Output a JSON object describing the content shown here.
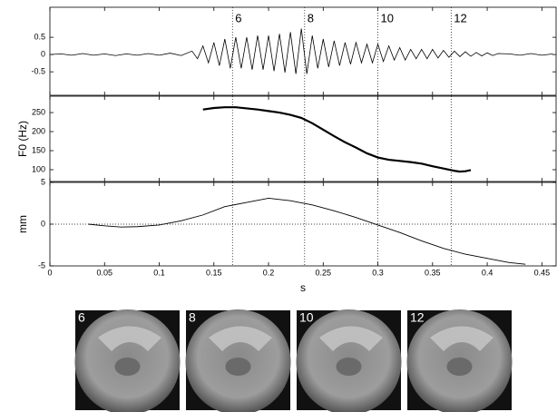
{
  "chart_data": [
    {
      "type": "line",
      "color": "#000000",
      "x": [
        0,
        0.01,
        0.02,
        0.03,
        0.04,
        0.05,
        0.06,
        0.07,
        0.08,
        0.09,
        0.1,
        0.11,
        0.12,
        0.13,
        0.135,
        0.14,
        0.145,
        0.15,
        0.155,
        0.16,
        0.165,
        0.17,
        0.175,
        0.18,
        0.185,
        0.19,
        0.195,
        0.2,
        0.205,
        0.21,
        0.215,
        0.22,
        0.225,
        0.23,
        0.235,
        0.24,
        0.245,
        0.25,
        0.255,
        0.26,
        0.265,
        0.27,
        0.275,
        0.28,
        0.285,
        0.29,
        0.295,
        0.3,
        0.305,
        0.31,
        0.315,
        0.32,
        0.325,
        0.33,
        0.335,
        0.34,
        0.345,
        0.35,
        0.355,
        0.36,
        0.365,
        0.37,
        0.375,
        0.38,
        0.385,
        0.39,
        0.395,
        0.4,
        0.405,
        0.41,
        0.42,
        0.43,
        0.44,
        0.45,
        0.46
      ],
      "values": [
        0,
        0.02,
        -0.02,
        0.03,
        -0.02,
        0.02,
        -0.03,
        0.02,
        -0.02,
        0.03,
        -0.02,
        0.04,
        -0.03,
        0.1,
        -0.12,
        0.25,
        -0.24,
        0.35,
        -0.32,
        0.45,
        -0.4,
        0.5,
        -0.4,
        0.5,
        -0.44,
        0.55,
        -0.44,
        0.55,
        -0.48,
        0.6,
        -0.52,
        0.65,
        -0.56,
        0.75,
        -0.56,
        0.55,
        -0.4,
        0.45,
        -0.36,
        0.4,
        -0.32,
        0.35,
        -0.28,
        0.35,
        -0.24,
        0.3,
        -0.24,
        0.3,
        -0.2,
        0.25,
        -0.16,
        0.2,
        -0.16,
        0.15,
        -0.12,
        0.15,
        -0.12,
        0.15,
        -0.1,
        0.12,
        -0.08,
        0.1,
        -0.06,
        0.08,
        -0.05,
        0.06,
        -0.04,
        0.05,
        -0.03,
        0.03,
        0.02,
        -0.02,
        0.03,
        -0.02,
        0.02
      ],
      "xlim": [
        0,
        0.463
      ],
      "ylim": [
        -1.18,
        1.37
      ],
      "yticks": [
        -0.5,
        0,
        0.5
      ],
      "annotations": [
        {
          "x": 0.167,
          "label": "6"
        },
        {
          "x": 0.233,
          "label": "8"
        },
        {
          "x": 0.3,
          "label": "10"
        },
        {
          "x": 0.367,
          "label": "12"
        }
      ]
    },
    {
      "type": "line",
      "color": "#000000",
      "y_label": "F0 (Hz)",
      "x": [
        0.14,
        0.15,
        0.16,
        0.17,
        0.18,
        0.19,
        0.2,
        0.21,
        0.22,
        0.23,
        0.24,
        0.25,
        0.26,
        0.27,
        0.28,
        0.29,
        0.3,
        0.31,
        0.32,
        0.33,
        0.34,
        0.35,
        0.36,
        0.37,
        0.375,
        0.38,
        0.385
      ],
      "values": [
        258,
        262,
        264,
        264,
        261,
        258,
        254,
        250,
        244,
        236,
        222,
        205,
        188,
        172,
        158,
        143,
        132,
        126,
        123,
        120,
        116,
        109,
        103,
        97,
        95,
        96,
        99
      ],
      "xlim": [
        0,
        0.463
      ],
      "ylim": [
        69,
        293
      ],
      "yticks": [
        100,
        150,
        200,
        250
      ]
    },
    {
      "type": "line",
      "color": "#000000",
      "y_label": "mm",
      "x_label": "s",
      "zero_line": true,
      "x": [
        0.035,
        0.05,
        0.065,
        0.08,
        0.1,
        0.12,
        0.14,
        0.16,
        0.18,
        0.2,
        0.22,
        0.24,
        0.26,
        0.28,
        0.3,
        0.32,
        0.34,
        0.36,
        0.38,
        0.4,
        0.42,
        0.435
      ],
      "values": [
        0,
        -0.2,
        -0.35,
        -0.3,
        -0.1,
        0.4,
        1.1,
        2.1,
        2.6,
        3.1,
        2.8,
        2.3,
        1.6,
        0.8,
        -0.1,
        -1,
        -2,
        -2.9,
        -3.6,
        -4.1,
        -4.6,
        -4.8
      ],
      "xlim": [
        0,
        0.463
      ],
      "ylim": [
        -5,
        5
      ],
      "yticks": [
        -5,
        0,
        5
      ],
      "xticks": [
        0,
        0.05,
        0.1,
        0.15,
        0.2,
        0.25,
        0.3,
        0.35,
        0.4,
        0.45
      ]
    }
  ],
  "frames": [
    {
      "label": "6"
    },
    {
      "label": "8"
    },
    {
      "label": "10"
    },
    {
      "label": "12"
    }
  ]
}
